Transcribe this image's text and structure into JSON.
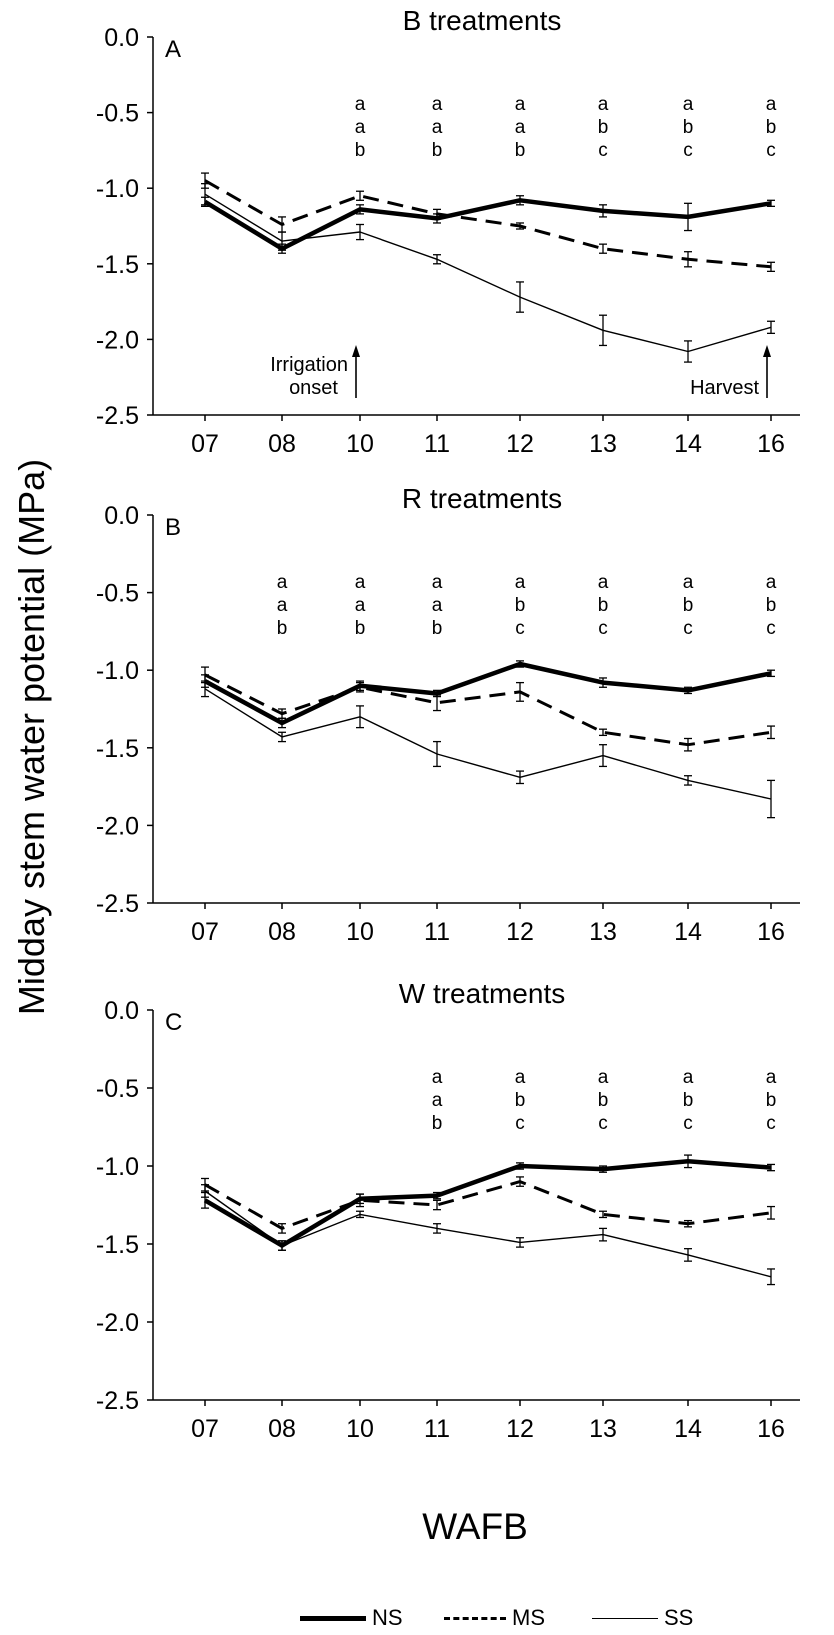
{
  "figure": {
    "ylabel": "Midday stem water potential (MPa)",
    "xlabel": "WAFB",
    "legend": [
      {
        "name": "NS",
        "style": "thick-solid"
      },
      {
        "name": "MS",
        "style": "dashed"
      },
      {
        "name": "SS",
        "style": "thin-solid"
      }
    ]
  },
  "chart_data": [
    {
      "type": "line",
      "title": "B treatments",
      "panel_label": "A",
      "categories": [
        "07",
        "08",
        "10",
        "11",
        "12",
        "13",
        "14",
        "16"
      ],
      "ylim": [
        -2.5,
        0.0
      ],
      "yticks": [
        "0.0",
        "-0.5",
        "-1.0",
        "-1.5",
        "-2.0",
        "-2.5"
      ],
      "series": [
        {
          "name": "NS",
          "values": [
            -1.09,
            -1.4,
            -1.14,
            -1.2,
            -1.08,
            -1.15,
            -1.19,
            -1.1
          ],
          "errors": [
            0.03,
            0.03,
            0.03,
            0.03,
            0.03,
            0.04,
            0.09,
            0.02
          ]
        },
        {
          "name": "MS",
          "values": [
            -0.95,
            -1.24,
            -1.05,
            -1.17,
            -1.25,
            -1.4,
            -1.47,
            -1.52
          ],
          "errors": [
            0.05,
            0.05,
            0.03,
            0.03,
            0.02,
            0.03,
            0.05,
            0.03
          ]
        },
        {
          "name": "SS",
          "values": [
            -1.04,
            -1.35,
            -1.29,
            -1.47,
            -1.72,
            -1.94,
            -2.08,
            -1.92
          ],
          "errors": [
            0.07,
            0.06,
            0.05,
            0.03,
            0.1,
            0.1,
            0.07,
            0.04
          ]
        }
      ],
      "letters": [
        {
          "x": "10",
          "labels": [
            "a",
            "a",
            "b"
          ]
        },
        {
          "x": "11",
          "labels": [
            "a",
            "a",
            "b"
          ]
        },
        {
          "x": "12",
          "labels": [
            "a",
            "a",
            "b"
          ]
        },
        {
          "x": "13",
          "labels": [
            "a",
            "b",
            "c"
          ]
        },
        {
          "x": "14",
          "labels": [
            "a",
            "b",
            "c"
          ]
        },
        {
          "x": "16",
          "labels": [
            "a",
            "b",
            "c"
          ]
        }
      ],
      "annotations": [
        {
          "text": "Irrigation\nonset",
          "x": "10",
          "kind": "arrow"
        },
        {
          "text": "Harvest",
          "x": "16",
          "kind": "arrow"
        }
      ]
    },
    {
      "type": "line",
      "title": "R treatments",
      "panel_label": "B",
      "categories": [
        "07",
        "08",
        "10",
        "11",
        "12",
        "13",
        "14",
        "16"
      ],
      "ylim": [
        -2.5,
        0.0
      ],
      "yticks": [
        "0.0",
        "-0.5",
        "-1.0",
        "-1.5",
        "-2.0",
        "-2.5"
      ],
      "series": [
        {
          "name": "NS",
          "values": [
            -1.07,
            -1.34,
            -1.1,
            -1.15,
            -0.96,
            -1.08,
            -1.13,
            -1.02
          ],
          "errors": [
            0.04,
            0.03,
            0.03,
            0.02,
            0.02,
            0.03,
            0.02,
            0.02
          ]
        },
        {
          "name": "MS",
          "values": [
            -1.03,
            -1.28,
            -1.11,
            -1.21,
            -1.14,
            -1.4,
            -1.48,
            -1.4
          ],
          "errors": [
            0.05,
            0.03,
            0.03,
            0.05,
            0.06,
            0.02,
            0.04,
            0.04
          ]
        },
        {
          "name": "SS",
          "values": [
            -1.12,
            -1.43,
            -1.3,
            -1.54,
            -1.69,
            -1.55,
            -1.71,
            -1.83
          ],
          "errors": [
            0.05,
            0.03,
            0.07,
            0.08,
            0.04,
            0.07,
            0.03,
            0.12
          ]
        }
      ],
      "letters": [
        {
          "x": "08",
          "labels": [
            "a",
            "a",
            "b"
          ]
        },
        {
          "x": "10",
          "labels": [
            "a",
            "a",
            "b"
          ]
        },
        {
          "x": "11",
          "labels": [
            "a",
            "a",
            "b"
          ]
        },
        {
          "x": "12",
          "labels": [
            "a",
            "b",
            "c"
          ]
        },
        {
          "x": "13",
          "labels": [
            "a",
            "b",
            "c"
          ]
        },
        {
          "x": "14",
          "labels": [
            "a",
            "b",
            "c"
          ]
        },
        {
          "x": "16",
          "labels": [
            "a",
            "b",
            "c"
          ]
        }
      ],
      "annotations": []
    },
    {
      "type": "line",
      "title": "W treatments",
      "panel_label": "C",
      "categories": [
        "07",
        "08",
        "10",
        "11",
        "12",
        "13",
        "14",
        "16"
      ],
      "ylim": [
        -2.5,
        0.0
      ],
      "yticks": [
        "0.0",
        "-0.5",
        "-1.0",
        "-1.5",
        "-2.0",
        "-2.5"
      ],
      "series": [
        {
          "name": "NS",
          "values": [
            -1.22,
            -1.51,
            -1.21,
            -1.19,
            -1.0,
            -1.02,
            -0.97,
            -1.01
          ],
          "errors": [
            0.05,
            0.03,
            0.03,
            0.02,
            0.02,
            0.02,
            0.04,
            0.02
          ]
        },
        {
          "name": "MS",
          "values": [
            -1.12,
            -1.4,
            -1.22,
            -1.25,
            -1.1,
            -1.31,
            -1.37,
            -1.3
          ],
          "errors": [
            0.04,
            0.03,
            0.04,
            0.03,
            0.03,
            0.02,
            0.02,
            0.04
          ]
        },
        {
          "name": "SS",
          "values": [
            -1.16,
            -1.51,
            -1.31,
            -1.4,
            -1.49,
            -1.44,
            -1.57,
            -1.71
          ],
          "errors": [
            0.04,
            0.03,
            0.02,
            0.03,
            0.03,
            0.04,
            0.04,
            0.05
          ]
        }
      ],
      "letters": [
        {
          "x": "11",
          "labels": [
            "a",
            "a",
            "b"
          ]
        },
        {
          "x": "12",
          "labels": [
            "a",
            "b",
            "c"
          ]
        },
        {
          "x": "13",
          "labels": [
            "a",
            "b",
            "c"
          ]
        },
        {
          "x": "14",
          "labels": [
            "a",
            "b",
            "c"
          ]
        },
        {
          "x": "16",
          "labels": [
            "a",
            "b",
            "c"
          ]
        }
      ],
      "annotations": []
    }
  ]
}
